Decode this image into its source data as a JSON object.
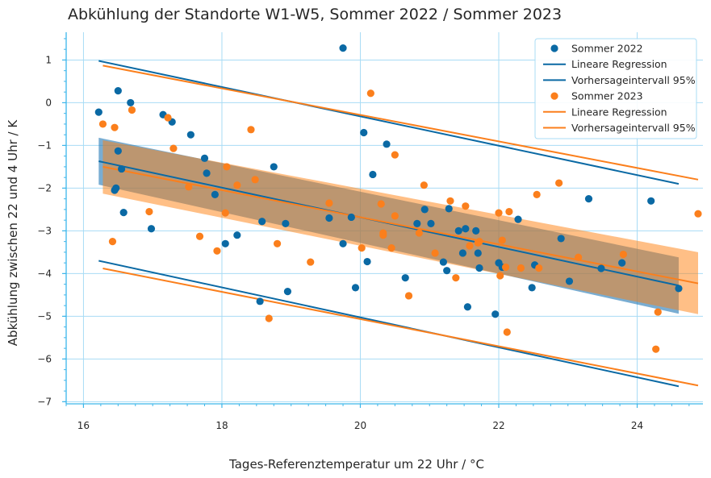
{
  "chart_data": {
    "type": "scatter",
    "title": "Abkühlung der Standorte W1-W5, Sommer 2022 / Sommer 2023",
    "xlabel": "Tages-Referenztemperatur um 22 Uhr / °C",
    "ylabel": "Abkühlung zwischen 22 und 4 Uhr / K",
    "xlim": [
      15.75,
      24.95
    ],
    "ylim": [
      -7.05,
      1.65
    ],
    "xticks": [
      16,
      18,
      20,
      22,
      24
    ],
    "yticks": [
      1,
      0,
      -1,
      -2,
      -3,
      -4,
      -5,
      -6,
      -7
    ],
    "grid": true,
    "legend_position": "top-right",
    "colors": {
      "s2022": "#0a69a4",
      "s2023": "#fb7f1c",
      "grid": "#a8dcf5",
      "axis": "#3cb6ea"
    },
    "series": [
      {
        "name": "Sommer 2022",
        "color": "#0a69a4",
        "points": [
          [
            16.22,
            -0.22
          ],
          [
            16.45,
            -2.05
          ],
          [
            16.47,
            -2.0
          ],
          [
            16.5,
            0.28
          ],
          [
            16.5,
            -1.13
          ],
          [
            16.55,
            -1.55
          ],
          [
            16.58,
            -2.57
          ],
          [
            16.68,
            0.0
          ],
          [
            16.98,
            -2.95
          ],
          [
            17.15,
            -0.28
          ],
          [
            17.28,
            -0.45
          ],
          [
            17.55,
            -0.75
          ],
          [
            17.75,
            -1.3
          ],
          [
            17.78,
            -1.65
          ],
          [
            17.9,
            -2.15
          ],
          [
            18.05,
            -3.3
          ],
          [
            18.22,
            -3.1
          ],
          [
            18.55,
            -4.65
          ],
          [
            18.58,
            -2.78
          ],
          [
            18.75,
            -1.5
          ],
          [
            18.92,
            -2.83
          ],
          [
            18.95,
            -4.42
          ],
          [
            19.75,
            1.28
          ],
          [
            19.55,
            -2.7
          ],
          [
            19.75,
            -3.3
          ],
          [
            19.87,
            -2.68
          ],
          [
            19.93,
            -4.33
          ],
          [
            20.05,
            -0.7
          ],
          [
            20.1,
            -3.72
          ],
          [
            20.18,
            -1.68
          ],
          [
            20.38,
            -0.97
          ],
          [
            20.65,
            -4.1
          ],
          [
            20.82,
            -2.83
          ],
          [
            20.93,
            -2.5
          ],
          [
            21.02,
            -2.83
          ],
          [
            21.2,
            -3.73
          ],
          [
            21.25,
            -3.93
          ],
          [
            21.28,
            -2.48
          ],
          [
            21.42,
            -3.0
          ],
          [
            21.48,
            -3.52
          ],
          [
            21.52,
            -2.95
          ],
          [
            21.55,
            -4.78
          ],
          [
            21.67,
            -3.0
          ],
          [
            21.7,
            -3.52
          ],
          [
            21.72,
            -3.87
          ],
          [
            21.95,
            -4.95
          ],
          [
            22.0,
            -3.75
          ],
          [
            22.05,
            -3.85
          ],
          [
            22.28,
            -2.73
          ],
          [
            22.48,
            -4.33
          ],
          [
            22.52,
            -3.8
          ],
          [
            22.9,
            -3.18
          ],
          [
            23.02,
            -4.18
          ],
          [
            23.3,
            -2.25
          ],
          [
            23.48,
            -3.88
          ],
          [
            23.78,
            -3.75
          ],
          [
            24.2,
            -2.3
          ],
          [
            24.6,
            -4.35
          ]
        ],
        "regression": {
          "label": "Lineare Regression",
          "x": [
            16.22,
            24.6
          ],
          "y": [
            -1.37,
            -4.28
          ]
        },
        "ci": {
          "x": [
            16.22,
            24.6
          ],
          "upper": [
            -0.82,
            -3.62
          ],
          "lower": [
            -1.92,
            -4.94
          ]
        },
        "prediction_interval": {
          "label": "Vorhersageintervall 95%",
          "x": [
            16.22,
            24.6
          ],
          "upper": [
            0.98,
            -1.9
          ],
          "lower": [
            -3.7,
            -6.64
          ]
        }
      },
      {
        "name": "Sommer 2023",
        "color": "#fb7f1c",
        "points": [
          [
            16.28,
            -0.5
          ],
          [
            16.42,
            -3.25
          ],
          [
            16.45,
            -0.58
          ],
          [
            16.7,
            -0.17
          ],
          [
            16.95,
            -2.55
          ],
          [
            17.22,
            -0.35
          ],
          [
            17.3,
            -1.07
          ],
          [
            17.52,
            -1.97
          ],
          [
            17.68,
            -3.13
          ],
          [
            17.93,
            -3.47
          ],
          [
            18.05,
            -2.58
          ],
          [
            18.07,
            -1.5
          ],
          [
            18.22,
            -1.93
          ],
          [
            18.42,
            -0.63
          ],
          [
            18.48,
            -1.8
          ],
          [
            18.68,
            -5.05
          ],
          [
            18.8,
            -3.3
          ],
          [
            19.28,
            -3.73
          ],
          [
            19.55,
            -2.35
          ],
          [
            20.02,
            -3.4
          ],
          [
            20.15,
            0.22
          ],
          [
            20.3,
            -2.37
          ],
          [
            20.33,
            -3.05
          ],
          [
            20.33,
            -3.1
          ],
          [
            20.45,
            -3.4
          ],
          [
            20.5,
            -1.22
          ],
          [
            20.5,
            -2.65
          ],
          [
            20.7,
            -4.52
          ],
          [
            20.85,
            -3.05
          ],
          [
            20.92,
            -1.93
          ],
          [
            21.08,
            -3.52
          ],
          [
            21.3,
            -2.3
          ],
          [
            21.38,
            -4.1
          ],
          [
            21.52,
            -2.42
          ],
          [
            21.58,
            -3.35
          ],
          [
            21.7,
            -3.28
          ],
          [
            21.72,
            -3.25
          ],
          [
            22.0,
            -2.58
          ],
          [
            22.02,
            -4.05
          ],
          [
            22.05,
            -3.22
          ],
          [
            22.1,
            -3.85
          ],
          [
            22.12,
            -5.37
          ],
          [
            22.15,
            -2.55
          ],
          [
            22.32,
            -3.87
          ],
          [
            22.55,
            -2.15
          ],
          [
            22.58,
            -3.87
          ],
          [
            22.87,
            -1.88
          ],
          [
            23.15,
            -3.62
          ],
          [
            23.8,
            -3.55
          ],
          [
            24.27,
            -5.77
          ],
          [
            24.3,
            -4.9
          ],
          [
            24.88,
            -2.6
          ]
        ],
        "regression": {
          "label": "Lineare Regression",
          "x": [
            16.28,
            24.88
          ],
          "y": [
            -1.5,
            -4.23
          ]
        },
        "ci": {
          "x": [
            16.28,
            24.88
          ],
          "upper": [
            -0.88,
            -3.5
          ],
          "lower": [
            -2.13,
            -4.95
          ]
        },
        "prediction_interval": {
          "label": "Vorhersageintervall 95%",
          "x": [
            16.28,
            24.88
          ],
          "upper": [
            0.87,
            -1.8
          ],
          "lower": [
            -3.88,
            -6.62
          ]
        }
      }
    ]
  }
}
